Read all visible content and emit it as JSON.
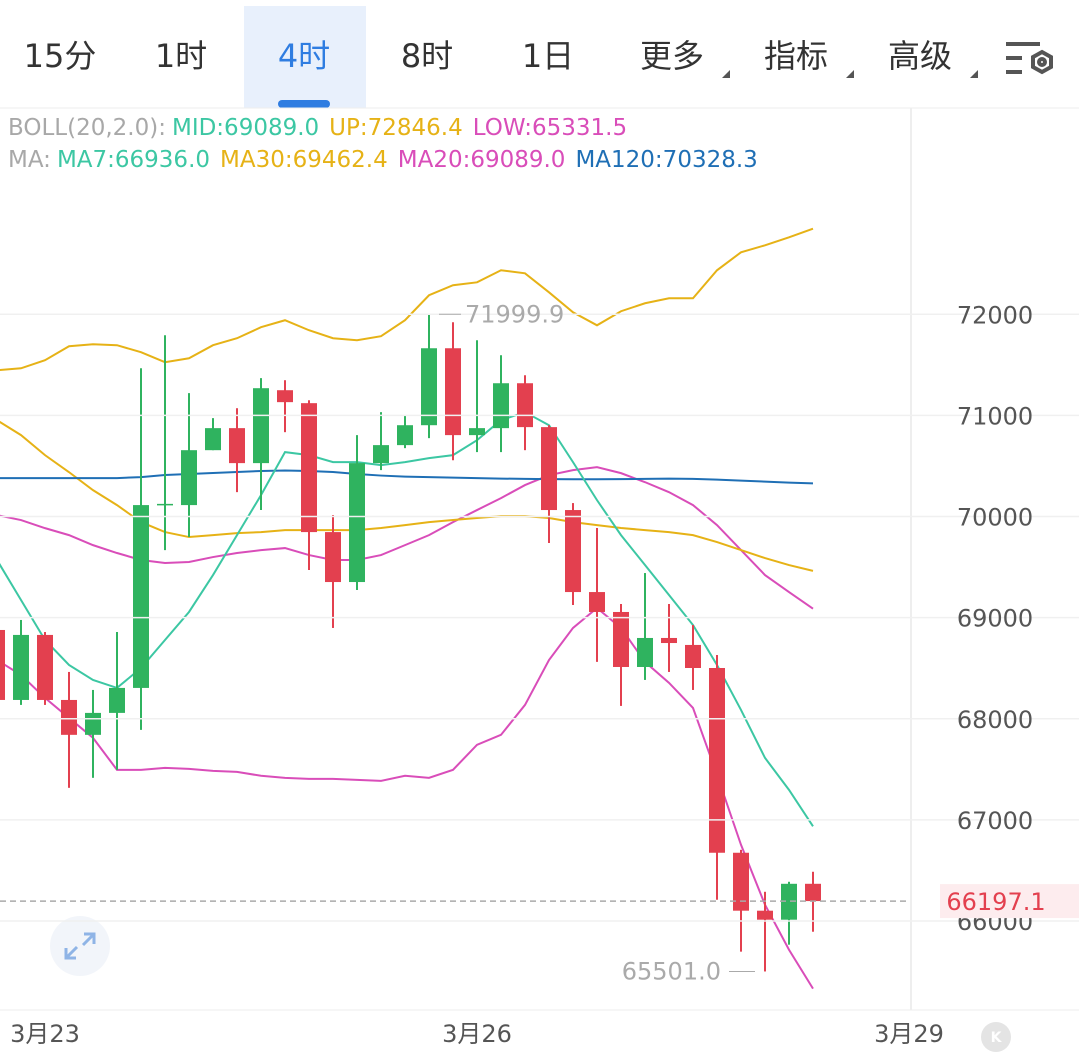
{
  "tabs": [
    "15分",
    "1时",
    "4时",
    "8时",
    "1日",
    "更多",
    "指标",
    "高级"
  ],
  "active_tab": 2,
  "chart_data": {
    "type": "candlestick",
    "legend_rows": [
      [
        {
          "text": "BOLL(20,2.0):",
          "color": "#a8a8a8"
        },
        {
          "text": "MID:69089.0",
          "color": "#3cc7a3"
        },
        {
          "text": "UP:72846.4",
          "color": "#e6b216"
        },
        {
          "text": "LOW:65331.5",
          "color": "#d94db9"
        }
      ],
      [
        {
          "text": "MA:",
          "color": "#a8a8a8"
        },
        {
          "text": "MA7:66936.0",
          "color": "#3cc7a3"
        },
        {
          "text": "MA30:69462.4",
          "color": "#e6b216"
        },
        {
          "text": "MA20:69089.0",
          "color": "#d94db9"
        },
        {
          "text": "MA120:70328.3",
          "color": "#1f6fb5"
        }
      ]
    ],
    "categories": [
      null,
      null,
      "3月23",
      null,
      null,
      null,
      null,
      null,
      null,
      null,
      null,
      null,
      null,
      null,
      null,
      null,
      null,
      null,
      null,
      null,
      "3月26",
      null,
      null,
      null,
      null,
      null,
      null,
      null,
      null,
      null,
      null,
      null,
      null,
      null,
      null,
      null,
      null,
      null,
      "3月29"
    ],
    "open": [
      68878,
      68186,
      68829,
      68186,
      67841,
      68058,
      68305,
      70110,
      70113,
      70656,
      70874,
      70528,
      71249,
      71121,
      69846,
      69352,
      70528,
      70706,
      70903,
      71664,
      70805,
      70874,
      71318,
      70884,
      70064,
      69253,
      69056,
      68512,
      68799,
      68730,
      68502,
      66675,
      66102,
      66013,
      66368,
      null,
      null,
      null,
      null
    ],
    "high": [
      68930,
      68977,
      68858,
      68463,
      68285,
      68858,
      71466,
      71793,
      71220,
      70973,
      71071,
      71368,
      71348,
      71150,
      70014,
      70805,
      71032,
      71002,
      71999.9,
      71921,
      71743,
      71595,
      71397,
      70903,
      70133,
      69886,
      69135,
      69441,
      69135,
      68927,
      68631,
      66704,
      66289,
      66388,
      66487,
      null,
      null,
      null,
      null
    ],
    "low": [
      68170,
      68137,
      68137,
      67317,
      67416,
      67495,
      67890,
      69668,
      69797,
      70656,
      70241,
      70064,
      70834,
      69471,
      68898,
      69273,
      70459,
      70676,
      70775,
      70557,
      70637,
      70637,
      70656,
      69738,
      69125,
      68562,
      68127,
      68384,
      68463,
      68285,
      66210,
      65697,
      65501.0,
      65766,
      65894,
      null,
      null,
      null,
      null
    ],
    "close": [
      68186,
      68829,
      68186,
      67841,
      68058,
      68305,
      70113,
      70125,
      70656,
      70874,
      70528,
      71269,
      71131,
      69846,
      69352,
      70528,
      70706,
      70903,
      71664,
      70805,
      70874,
      71318,
      70884,
      70064,
      69253,
      69056,
      68512,
      68799,
      68749,
      68502,
      66675,
      66102,
      66013,
      66368,
      66197.1,
      null,
      null,
      null,
      null
    ],
    "up_color": "#2fb35f",
    "down_color": "#e3404f",
    "lines": [
      {
        "color": "#e6b216",
        "values": [
          71447,
          71466,
          71546,
          71684,
          71704,
          71694,
          71625,
          71526,
          71565,
          71694,
          71763,
          71872,
          71941,
          71842,
          71763,
          71743,
          71783,
          71941,
          72188,
          72287,
          72316,
          72435,
          72405,
          72217,
          72020,
          71891,
          72030,
          72109,
          72158,
          72158,
          72435,
          72613,
          72682,
          72761,
          72846.4,
          null,
          null,
          null,
          null
        ]
      },
      {
        "color": "#d94db9",
        "values": [
          68581,
          68433,
          68206,
          68008,
          67811,
          67495,
          67495,
          67514,
          67505,
          67485,
          67475,
          67436,
          67416,
          67406,
          67406,
          67396,
          67386,
          67436,
          67416,
          67495,
          67742,
          67841,
          68137,
          68581,
          68898,
          69095,
          68898,
          68562,
          68355,
          68107,
          67446,
          66754,
          66161,
          65716,
          65331.5,
          null,
          null,
          null,
          null
        ]
      },
      {
        "color": "#d94db9",
        "values": [
          70014,
          69965,
          69885,
          69816,
          69717,
          69639,
          69570,
          69540,
          69550,
          69599,
          69639,
          69668,
          69688,
          69619,
          69570,
          69570,
          69619,
          69717,
          69816,
          69945,
          70064,
          70182,
          70311,
          70409,
          70459,
          70488,
          70429,
          70340,
          70241,
          70113,
          69915,
          69668,
          69421,
          69253,
          69089.0,
          null,
          null,
          null,
          null
        ]
      },
      {
        "color": "#e6b216",
        "values": [
          70953,
          70805,
          70607,
          70439,
          70261,
          70113,
          69945,
          69846,
          69797,
          69816,
          69836,
          69846,
          69866,
          69866,
          69866,
          69866,
          69886,
          69915,
          69945,
          69965,
          69985,
          70004,
          70004,
          69985,
          69945,
          69915,
          69886,
          69866,
          69846,
          69816,
          69747,
          69668,
          69589,
          69520,
          69462.4,
          null,
          null,
          null,
          null
        ]
      },
      {
        "color": "#1f6fb5",
        "values": [
          70380,
          70380,
          70380,
          70380,
          70380,
          70380,
          70390,
          70410,
          70420,
          70430,
          70440,
          70450,
          70455,
          70450,
          70440,
          70420,
          70405,
          70395,
          70390,
          70385,
          70380,
          70375,
          70372,
          70370,
          70368,
          70368,
          70370,
          70372,
          70375,
          70372,
          70365,
          70355,
          70345,
          70335,
          70328.3,
          null,
          null,
          null,
          null
        ]
      },
      {
        "color": "#3cc7a3",
        "values": [
          69570,
          69174,
          68779,
          68532,
          68384,
          68305,
          68502,
          68779,
          69056,
          69421,
          69816,
          70212,
          70637,
          70607,
          70538,
          70538,
          70508,
          70538,
          70577,
          70607,
          70755,
          70953,
          71032,
          70903,
          70538,
          70162,
          69816,
          69520,
          69224,
          68927,
          68532,
          68087,
          67613,
          67297,
          66936.0,
          null,
          null,
          null,
          null
        ]
      }
    ],
    "ylim": [
      65120,
      74020
    ],
    "yticks": [
      66000,
      67000,
      68000,
      69000,
      70000,
      71000,
      72000
    ],
    "grid": true,
    "max_label": "71999.9",
    "min_label": "65501.0",
    "last_price_label": "66197.1"
  }
}
